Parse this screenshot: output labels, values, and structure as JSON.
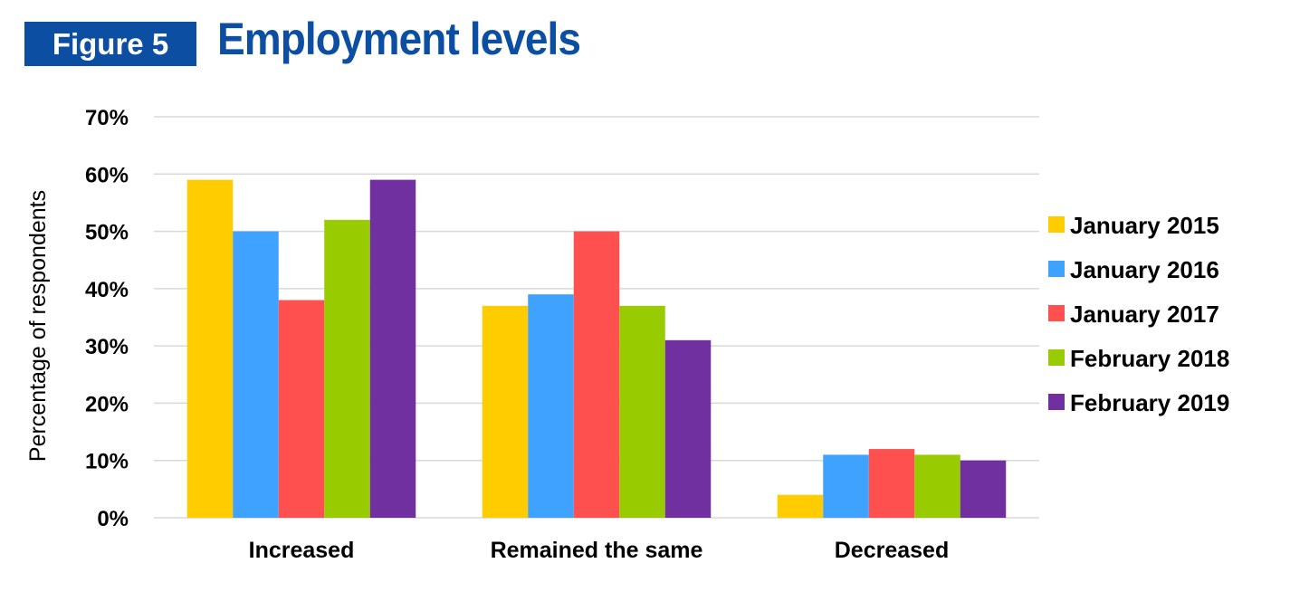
{
  "figure": {
    "label": "Figure 5",
    "title": "Employment levels"
  },
  "chart_data": {
    "type": "bar",
    "title": "Employment levels",
    "ylabel": "Percentage of respondents",
    "xlabel": "",
    "ylim": [
      0,
      70
    ],
    "yticks": [
      "0%",
      "10%",
      "20%",
      "30%",
      "40%",
      "50%",
      "60%",
      "70%"
    ],
    "ytick_values": [
      0,
      10,
      20,
      30,
      40,
      50,
      60,
      70
    ],
    "grid": true,
    "legend_position": "right",
    "categories": [
      "Increased",
      "Remained the same",
      "Decreased"
    ],
    "series": [
      {
        "name": "January 2015",
        "color": "#ffcc00",
        "values": [
          59,
          37,
          4
        ]
      },
      {
        "name": "January 2016",
        "color": "#3fa2ff",
        "values": [
          50,
          39,
          11
        ]
      },
      {
        "name": "January 2017",
        "color": "#ff5050",
        "values": [
          38,
          50,
          12
        ]
      },
      {
        "name": "February 2018",
        "color": "#99cc00",
        "values": [
          52,
          37,
          11
        ]
      },
      {
        "name": "February 2019",
        "color": "#7030a0",
        "values": [
          59,
          31,
          10
        ]
      }
    ]
  }
}
